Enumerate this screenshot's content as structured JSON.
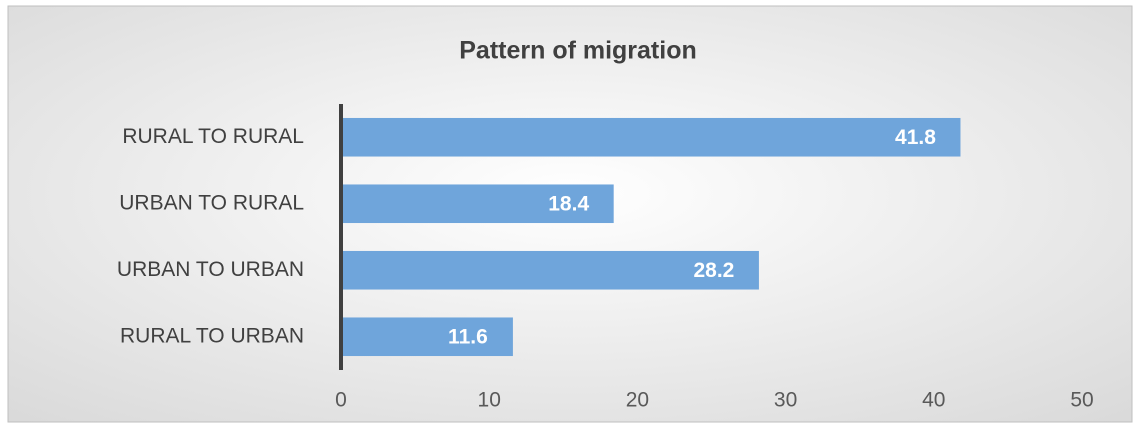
{
  "chart_data": {
    "type": "bar",
    "orientation": "horizontal",
    "title": "Pattern of migration",
    "categories": [
      "RURAL TO RURAL",
      "URBAN TO RURAL",
      "URBAN TO URBAN",
      "RURAL TO URBAN"
    ],
    "values": [
      41.8,
      18.4,
      28.2,
      11.6
    ],
    "color": "#6fa5db",
    "xlim": [
      0,
      50
    ],
    "xticks": [
      0,
      10,
      20,
      30,
      40,
      50
    ],
    "grid": false
  }
}
